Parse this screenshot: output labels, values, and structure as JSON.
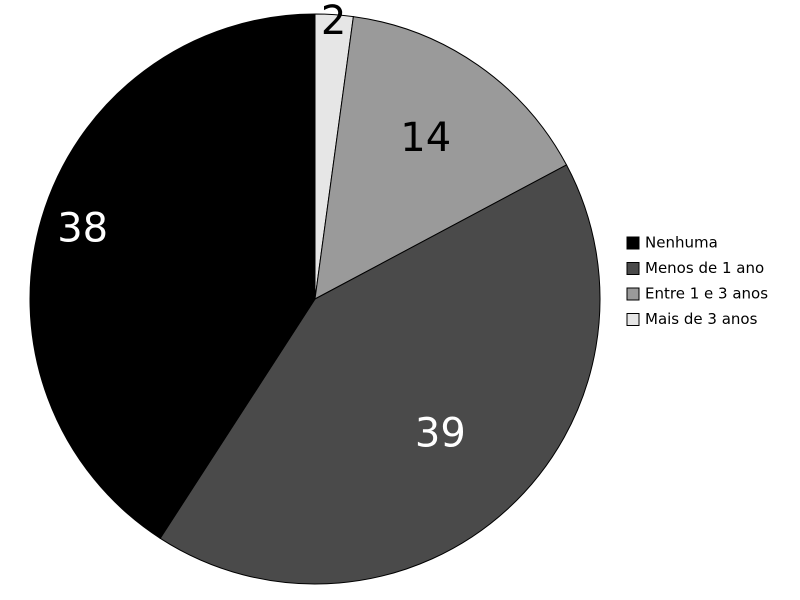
{
  "chart_data": {
    "type": "pie",
    "title": "",
    "start_angle_deg": 0,
    "direction": "clockwise",
    "legend_position": "right",
    "slices": [
      {
        "label": "Nenhuma",
        "value": 38,
        "color": "#000000",
        "text_color": "#ffffff"
      },
      {
        "label": "Menos de 1 ano",
        "value": 39,
        "color": "#4a4a4a",
        "text_color": "#ffffff"
      },
      {
        "label": "Entre 1 e 3 anos",
        "value": 14,
        "color": "#9a9a9a",
        "text_color": "#000000"
      },
      {
        "label": "Mais de 3 anos",
        "value": 2,
        "color": "#e6e6e6",
        "text_color": "#000000"
      }
    ]
  }
}
